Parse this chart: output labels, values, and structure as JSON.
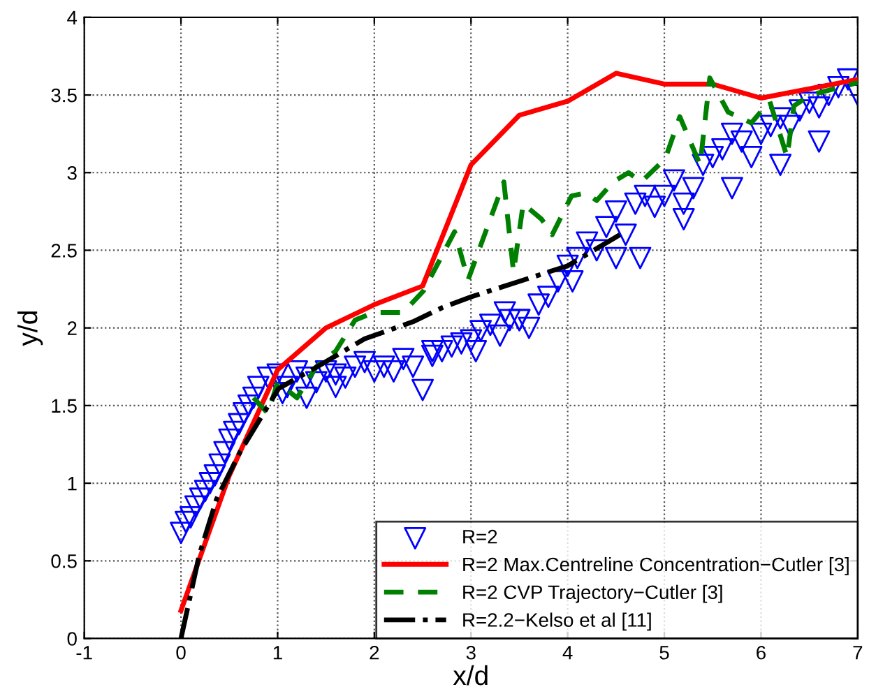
{
  "chart_data": {
    "type": "line",
    "xlabel": "x/d",
    "ylabel": "y/d",
    "xlim": [
      -1,
      7
    ],
    "ylim": [
      0,
      4
    ],
    "xticks": [
      -1,
      0,
      1,
      2,
      3,
      4,
      5,
      6,
      7
    ],
    "yticks": [
      0,
      0.5,
      1,
      1.5,
      2,
      2.5,
      3,
      3.5,
      4
    ],
    "grid": true,
    "legend": "bottom right",
    "series": [
      {
        "name": "R=2",
        "type": "scatter",
        "marker": "triangle",
        "color": "#0000ff",
        "x": [
          0.0,
          0.05,
          0.1,
          0.15,
          0.2,
          0.25,
          0.3,
          0.35,
          0.4,
          0.45,
          0.5,
          0.55,
          0.6,
          0.65,
          0.7,
          0.75,
          0.8,
          0.9,
          1.0,
          1.05,
          1.1,
          1.2,
          1.3,
          1.4,
          1.5,
          1.6,
          1.7,
          1.8,
          1.9,
          2.0,
          2.1,
          2.2,
          2.3,
          2.4,
          2.5,
          2.6,
          2.7,
          2.8,
          2.9,
          3.0,
          3.05,
          3.1,
          3.2,
          3.3,
          3.35,
          3.4,
          3.5,
          3.6,
          3.7,
          3.8,
          3.9,
          4.0,
          4.05,
          4.1,
          4.2,
          4.3,
          4.4,
          4.5,
          4.6,
          4.7,
          4.8,
          4.9,
          5.0,
          5.1,
          5.2,
          5.3,
          5.4,
          5.5,
          5.6,
          5.7,
          5.8,
          5.9,
          6.0,
          6.1,
          6.2,
          6.3,
          6.4,
          6.5,
          6.6,
          6.7,
          6.8,
          6.9,
          7.0,
          4.5,
          4.75,
          5.2,
          5.7,
          6.2,
          6.6,
          1.3,
          1.6,
          2.6,
          3.5
        ],
        "values": [
          0.68,
          0.75,
          0.78,
          0.85,
          0.9,
          0.95,
          1.0,
          1.05,
          1.12,
          1.2,
          1.28,
          1.33,
          1.38,
          1.45,
          1.5,
          1.55,
          1.62,
          1.68,
          1.7,
          1.58,
          1.62,
          1.72,
          1.68,
          1.65,
          1.72,
          1.7,
          1.68,
          1.75,
          1.78,
          1.72,
          1.75,
          1.72,
          1.8,
          1.75,
          1.6,
          1.82,
          1.85,
          1.88,
          1.9,
          1.92,
          1.85,
          1.98,
          2.02,
          1.95,
          2.1,
          2.05,
          2.05,
          2.0,
          2.15,
          2.2,
          2.3,
          2.4,
          2.3,
          2.45,
          2.55,
          2.5,
          2.65,
          2.75,
          2.6,
          2.8,
          2.85,
          2.78,
          2.85,
          2.95,
          2.8,
          2.9,
          3.05,
          3.1,
          3.15,
          3.25,
          3.2,
          3.1,
          3.25,
          3.3,
          3.35,
          3.3,
          3.4,
          3.45,
          3.42,
          3.5,
          3.55,
          3.6,
          3.5,
          2.45,
          2.45,
          2.7,
          2.9,
          3.05,
          3.2,
          1.55,
          1.62,
          1.85,
          2.05
        ]
      },
      {
        "name": "R=2 Max.Centreline Concentration−Cutler [3]",
        "line_style": "solid",
        "color": "#ff0000",
        "x": [
          0,
          0.5,
          1,
          1.5,
          2,
          2.5,
          3,
          3.5,
          4,
          4.5,
          5,
          5.5,
          6,
          7
        ],
        "values": [
          0.18,
          1.05,
          1.73,
          2.0,
          2.15,
          2.27,
          3.05,
          3.37,
          3.46,
          3.64,
          3.57,
          3.57,
          3.48,
          3.6
        ]
      },
      {
        "name": "R=2 CVP Trajectory−Cutler [3]",
        "line_style": "dashed",
        "color": "#008000",
        "x": [
          0.75,
          0.9,
          1.0,
          1.2,
          1.4,
          1.6,
          1.8,
          2.0,
          2.3,
          2.51,
          2.83,
          2.97,
          3.34,
          3.44,
          3.54,
          3.73,
          3.84,
          4.04,
          4.19,
          4.3,
          4.47,
          4.63,
          4.76,
          5.01,
          5.16,
          5.37,
          5.47,
          5.66,
          5.9,
          6.09,
          6.27,
          6.34,
          6.51,
          6.76,
          7.0
        ],
        "values": [
          1.55,
          1.45,
          1.65,
          1.55,
          1.75,
          1.85,
          2.05,
          2.1,
          2.1,
          2.24,
          2.62,
          2.31,
          2.94,
          2.36,
          2.8,
          2.7,
          2.6,
          2.85,
          2.87,
          2.82,
          2.94,
          3.0,
          2.94,
          3.09,
          3.36,
          3.05,
          3.61,
          3.39,
          3.32,
          3.46,
          3.1,
          3.43,
          3.5,
          3.54,
          3.58
        ]
      },
      {
        "name": "R=2.2−Kelso et al [11]",
        "line_style": "dashdot",
        "color": "#000000",
        "x": [
          0.0,
          0.19,
          0.37,
          0.61,
          1.01,
          1.41,
          1.9,
          2.4,
          2.7,
          3.0,
          3.5,
          4.0,
          4.54
        ],
        "values": [
          0.0,
          0.54,
          0.9,
          1.2,
          1.61,
          1.75,
          1.93,
          2.04,
          2.13,
          2.2,
          2.3,
          2.4,
          2.6
        ]
      }
    ]
  }
}
